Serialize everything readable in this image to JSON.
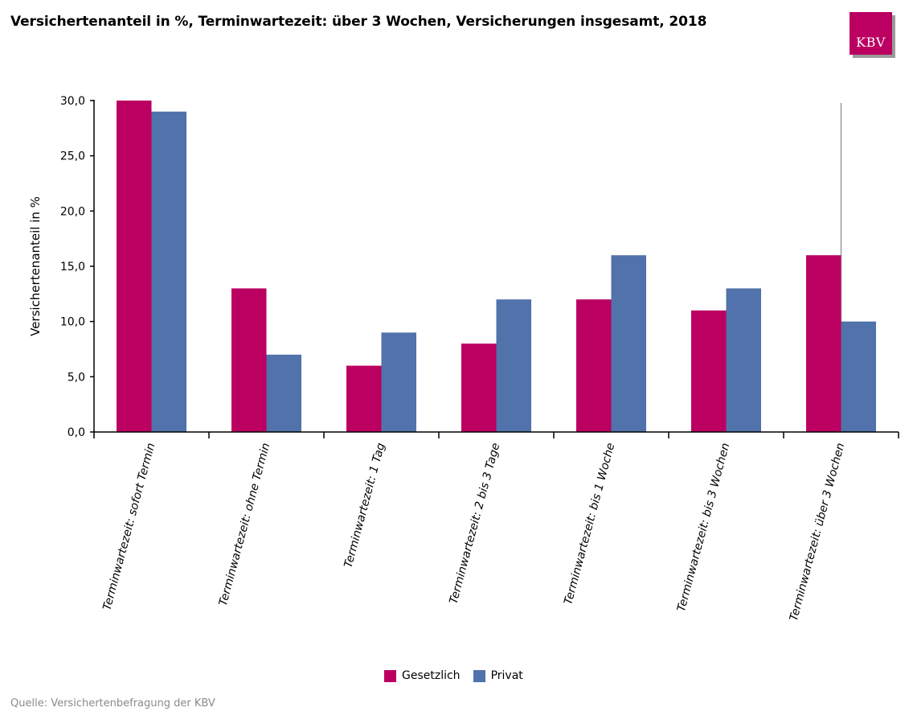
{
  "title": "Versichertenanteil in %, Terminwartezeit: über 3 Wochen, Versicherungen insgesamt, 2018",
  "logo": {
    "text": "KBV",
    "color": "#bb0062"
  },
  "source": "Quelle: Versichertenbefragung der KBV",
  "chart_data": {
    "type": "bar",
    "title": "Versichertenanteil in %, Terminwartezeit: über 3 Wochen, Versicherungen insgesamt, 2018",
    "xlabel": "",
    "ylabel": "Versichertenanteil in %",
    "ylim": [
      0,
      30
    ],
    "yticks": [
      "0,0",
      "5,0",
      "10,0",
      "15,0",
      "20,0",
      "25,0",
      "30,0"
    ],
    "yticks_values": [
      0,
      5,
      10,
      15,
      20,
      25,
      30
    ],
    "categories": [
      "Terminwartezeit: sofort Termin",
      "Terminwartezeit: ohne Termin",
      "Terminwartezeit: 1 Tag",
      "Terminwartezeit: 2 bis 3 Tage",
      "Terminwartezeit: bis 1 Woche",
      "Terminwartezeit: bis 3 Wochen",
      "Terminwartezeit: über 3 Wochen"
    ],
    "series": [
      {
        "name": "Gesetzlich",
        "color": "#bb0062",
        "values": [
          30,
          13,
          6,
          8,
          12,
          11,
          16
        ]
      },
      {
        "name": "Privat",
        "color": "#5172aa",
        "values": [
          29,
          7,
          9,
          12,
          16,
          13,
          10
        ]
      }
    ],
    "highlight_category": "Terminwartezeit: über 3 Wochen",
    "grid": false,
    "legend_position": "bottom-center"
  }
}
